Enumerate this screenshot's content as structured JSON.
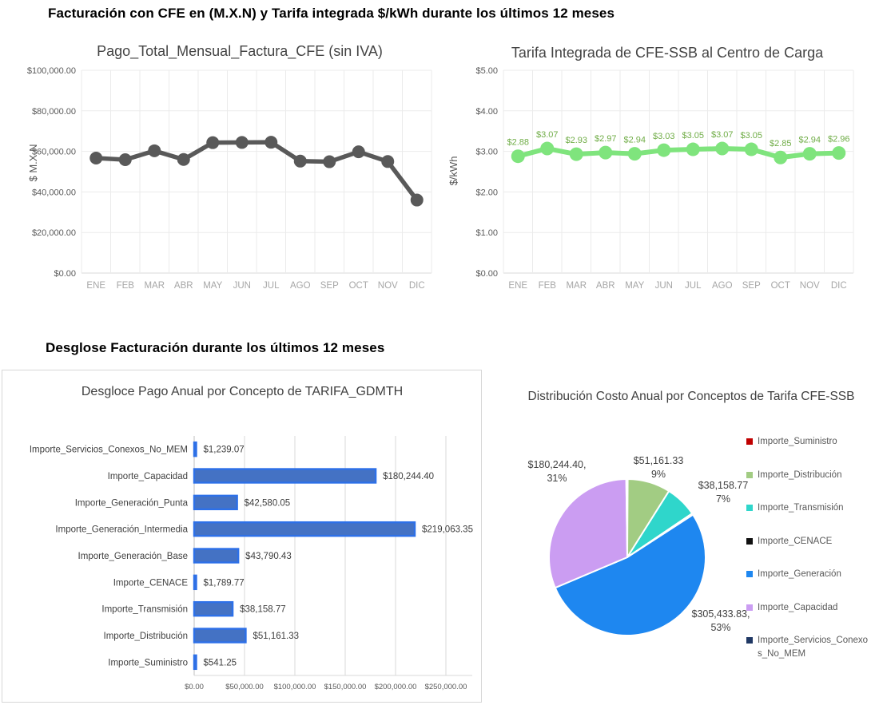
{
  "page": {
    "heading_top": "Facturación con CFE en (M.X.N) y Tarifa integrada $/kWh durante los últimos 12 meses",
    "heading_bottom": "Desglose Facturación durante los últimos 12 meses"
  },
  "chart_data": [
    {
      "id": "pago-total-mensual",
      "type": "line",
      "title": "Pago_Total_Mensual_Factura_CFE (sin IVA)",
      "ylabel": "$ M.X.N",
      "categories": [
        "ENE",
        "FEB",
        "MAR",
        "ABR",
        "MAY",
        "JUN",
        "JUL",
        "AGO",
        "SEP",
        "OCT",
        "NOV",
        "DIC"
      ],
      "values": [
        56700,
        55900,
        60300,
        56000,
        64300,
        64400,
        64500,
        55200,
        54900,
        59800,
        55000,
        36000
      ],
      "ylim": [
        0,
        100000
      ],
      "ytick_labels": [
        "$0.00",
        "$20,000.00",
        "$40,000.00",
        "$60,000.00",
        "$80,000.00",
        "$100,000.00"
      ],
      "grid": true,
      "line_color": "#595959"
    },
    {
      "id": "tarifa-integrada",
      "type": "line",
      "title": "Tarifa Integrada de CFE-SSB al Centro de Carga",
      "ylabel": "$/kWh",
      "categories": [
        "ENE",
        "FEB",
        "MAR",
        "ABR",
        "MAY",
        "JUN",
        "JUL",
        "AGO",
        "SEP",
        "OCT",
        "NOV",
        "DIC"
      ],
      "values": [
        2.88,
        3.07,
        2.93,
        2.97,
        2.94,
        3.03,
        3.05,
        3.07,
        3.05,
        2.85,
        2.94,
        2.96
      ],
      "point_labels": [
        "$2.88",
        "$3.07",
        "$2.93",
        "$2.97",
        "$2.94",
        "$3.03",
        "$3.05",
        "$3.07",
        "$3.05",
        "$2.85",
        "$2.94",
        "$2.96"
      ],
      "ylim": [
        0,
        5
      ],
      "ytick_labels": [
        "$0.00",
        "$1.00",
        "$2.00",
        "$3.00",
        "$4.00",
        "$5.00"
      ],
      "grid": true,
      "line_color": "#7FE47D",
      "label_color": "#70AD47"
    },
    {
      "id": "desglose-pago-anual",
      "type": "bar",
      "title": "Desgloce Pago Anual por Concepto de TARIFA_GDMTH",
      "categories": [
        "Importe_Servicios_Conexos_No_MEM",
        "Importe_Capacidad",
        "Importe_Generación_Punta",
        "Importe_Generación_Intermedia",
        "Importe_Generación_Base",
        "Importe_CENACE",
        "Importe_Transmisión",
        "Importe_Distribución",
        "Importe_Suministro"
      ],
      "values": [
        1239.07,
        180244.4,
        42580.05,
        219063.35,
        43790.43,
        1789.77,
        38158.77,
        51161.33,
        541.25
      ],
      "value_labels": [
        "$1,239.07",
        "$180,244.40",
        "$42,580.05",
        "$219,063.35",
        "$43,790.43",
        "$1,789.77",
        "$38,158.77",
        "$51,161.33",
        "$541.25"
      ],
      "xlim": [
        0,
        250000
      ],
      "xtick_labels": [
        "$0.00",
        "$50,000.00",
        "$100,000.00",
        "$150,000.00",
        "$200,000.00",
        "$250,000.00"
      ],
      "grid": true,
      "bar_fill": "#4472C4",
      "bar_border": "#2D70E8"
    },
    {
      "id": "distribucion-costo-anual",
      "type": "pie",
      "title": "Distribución Costo Anual por Conceptos de Tarifa CFE-SSB",
      "legend_position": "right",
      "slices": [
        {
          "name": "Importe_Suministro",
          "value": 541.25,
          "color": "#C00000",
          "label_value": "",
          "label_pct": ""
        },
        {
          "name": "Importe_Distribución",
          "value": 51161.33,
          "color": "#A2CC83",
          "label_value": "$51,161.33",
          "label_pct": "9%"
        },
        {
          "name": "Importe_Transmisión",
          "value": 38158.77,
          "color": "#2FD6CB",
          "label_value": "$38,158.77",
          "label_pct": "7%"
        },
        {
          "name": "Importe_CENACE",
          "value": 1789.77,
          "color": "#111111",
          "label_value": "",
          "label_pct": ""
        },
        {
          "name": "Importe_Generación",
          "value": 305433.83,
          "color": "#1E87F0",
          "label_value": "$305,433.83,",
          "label_pct": "53%"
        },
        {
          "name": "Importe_Capacidad",
          "value": 180244.4,
          "color": "#CB9DF2",
          "label_value": "$180,244.40,",
          "label_pct": "31%"
        },
        {
          "name": "Importe_Servicios_Conexos_No_MEM",
          "value": 1239.07,
          "color": "#203864",
          "label_value": "",
          "label_pct": ""
        }
      ]
    }
  ]
}
